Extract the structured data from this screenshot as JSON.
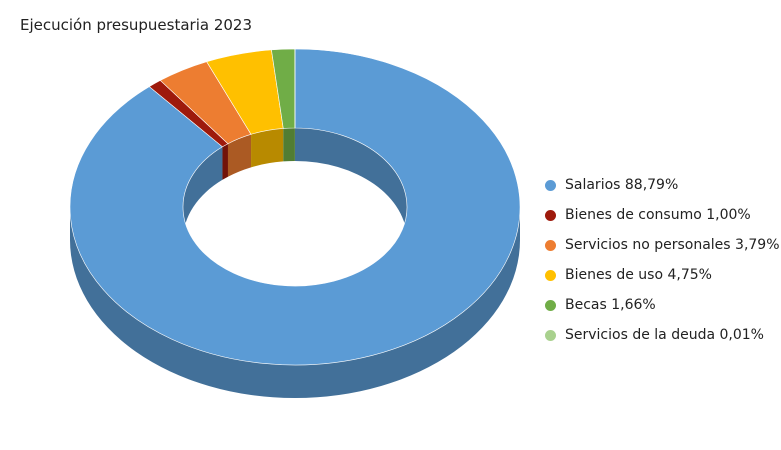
{
  "chart_data": {
    "type": "pie",
    "variant": "donut-3d",
    "title": "Ejecución presupuestaria 2023",
    "legend_position": "right",
    "series": [
      {
        "name": "Salarios",
        "value": 88.79,
        "label": "Salarios 88,79%",
        "color": "#5b9bd5"
      },
      {
        "name": "Bienes de consumo",
        "value": 1.0,
        "label": "Bienes de consumo 1,00%",
        "color": "#9e1a0c"
      },
      {
        "name": "Servicios no personales",
        "value": 3.79,
        "label": "Servicios no personales 3,79%",
        "color": "#ed7d31"
      },
      {
        "name": "Bienes de uso",
        "value": 4.75,
        "label": "Bienes de uso 4,75%",
        "color": "#ffc000"
      },
      {
        "name": "Becas",
        "value": 1.66,
        "label": "Becas 1,66%",
        "color": "#70ad47"
      },
      {
        "name": "Servicios de la deuda",
        "value": 0.01,
        "label": "Servicios de la deuda 0,01%",
        "color": "#a9d18e"
      }
    ]
  }
}
